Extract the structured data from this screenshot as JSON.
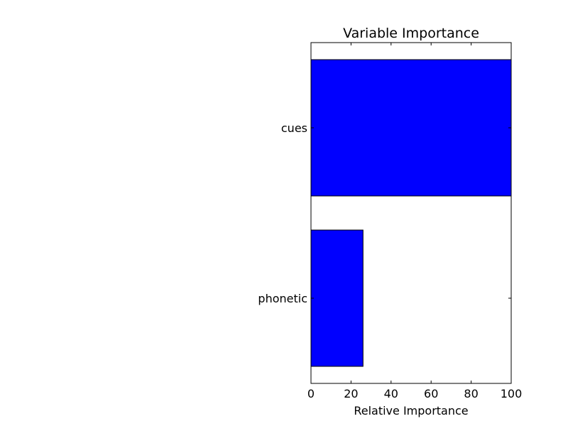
{
  "chart_data": {
    "type": "bar",
    "orientation": "horizontal",
    "title": "Variable Importance",
    "xlabel": "Relative Importance",
    "ylabel": "",
    "categories": [
      "phonetic",
      "cues"
    ],
    "values": [
      26,
      100
    ],
    "xlim": [
      0,
      100
    ],
    "x_ticks": [
      0,
      20,
      40,
      60,
      80,
      100
    ],
    "x_tick_labels": [
      "0",
      "20",
      "40",
      "60",
      "80",
      "100"
    ],
    "bar_color": "#0000ff",
    "edge_color": "#000000",
    "grid": false,
    "legend": "none"
  }
}
